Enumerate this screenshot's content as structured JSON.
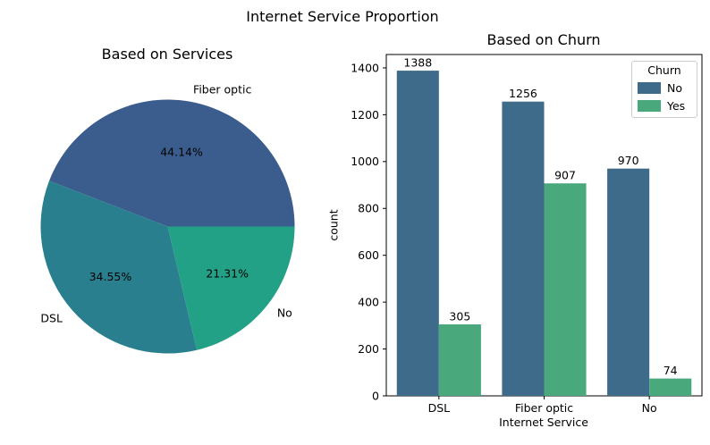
{
  "figure": {
    "suptitle": "Internet Service Proportion",
    "background": "#ffffff"
  },
  "chart_data": [
    {
      "type": "pie",
      "title": "Based on Services",
      "labels": [
        "Fiber optic",
        "DSL",
        "No"
      ],
      "values": [
        44.14,
        34.55,
        21.31
      ],
      "value_labels": [
        "44.14%",
        "34.55%",
        "21.31%"
      ],
      "colors": [
        "#3a5d8d",
        "#2a7f8e",
        "#23a186"
      ],
      "startangle": 0,
      "counterclock": true,
      "legend_position": "none"
    },
    {
      "type": "bar",
      "title": "Based on Churn",
      "xlabel": "Internet Service",
      "ylabel": "count",
      "categories": [
        "DSL",
        "Fiber optic",
        "No"
      ],
      "series": [
        {
          "name": "No",
          "color": "#3d6b89",
          "values": [
            1388,
            1256,
            970
          ]
        },
        {
          "name": "Yes",
          "color": "#4aa97c",
          "values": [
            305,
            907,
            74
          ]
        }
      ],
      "bar_labels": [
        [
          "1388",
          "1256",
          "970"
        ],
        [
          "305",
          "907",
          "74"
        ]
      ],
      "yticks": [
        "0",
        "200",
        "400",
        "600",
        "800",
        "1000",
        "1200",
        "1400"
      ],
      "ylim": [
        0,
        1457
      ],
      "grid": false,
      "legend": {
        "title": "Churn",
        "entries": [
          "No",
          "Yes"
        ],
        "position": "upper right"
      }
    }
  ]
}
